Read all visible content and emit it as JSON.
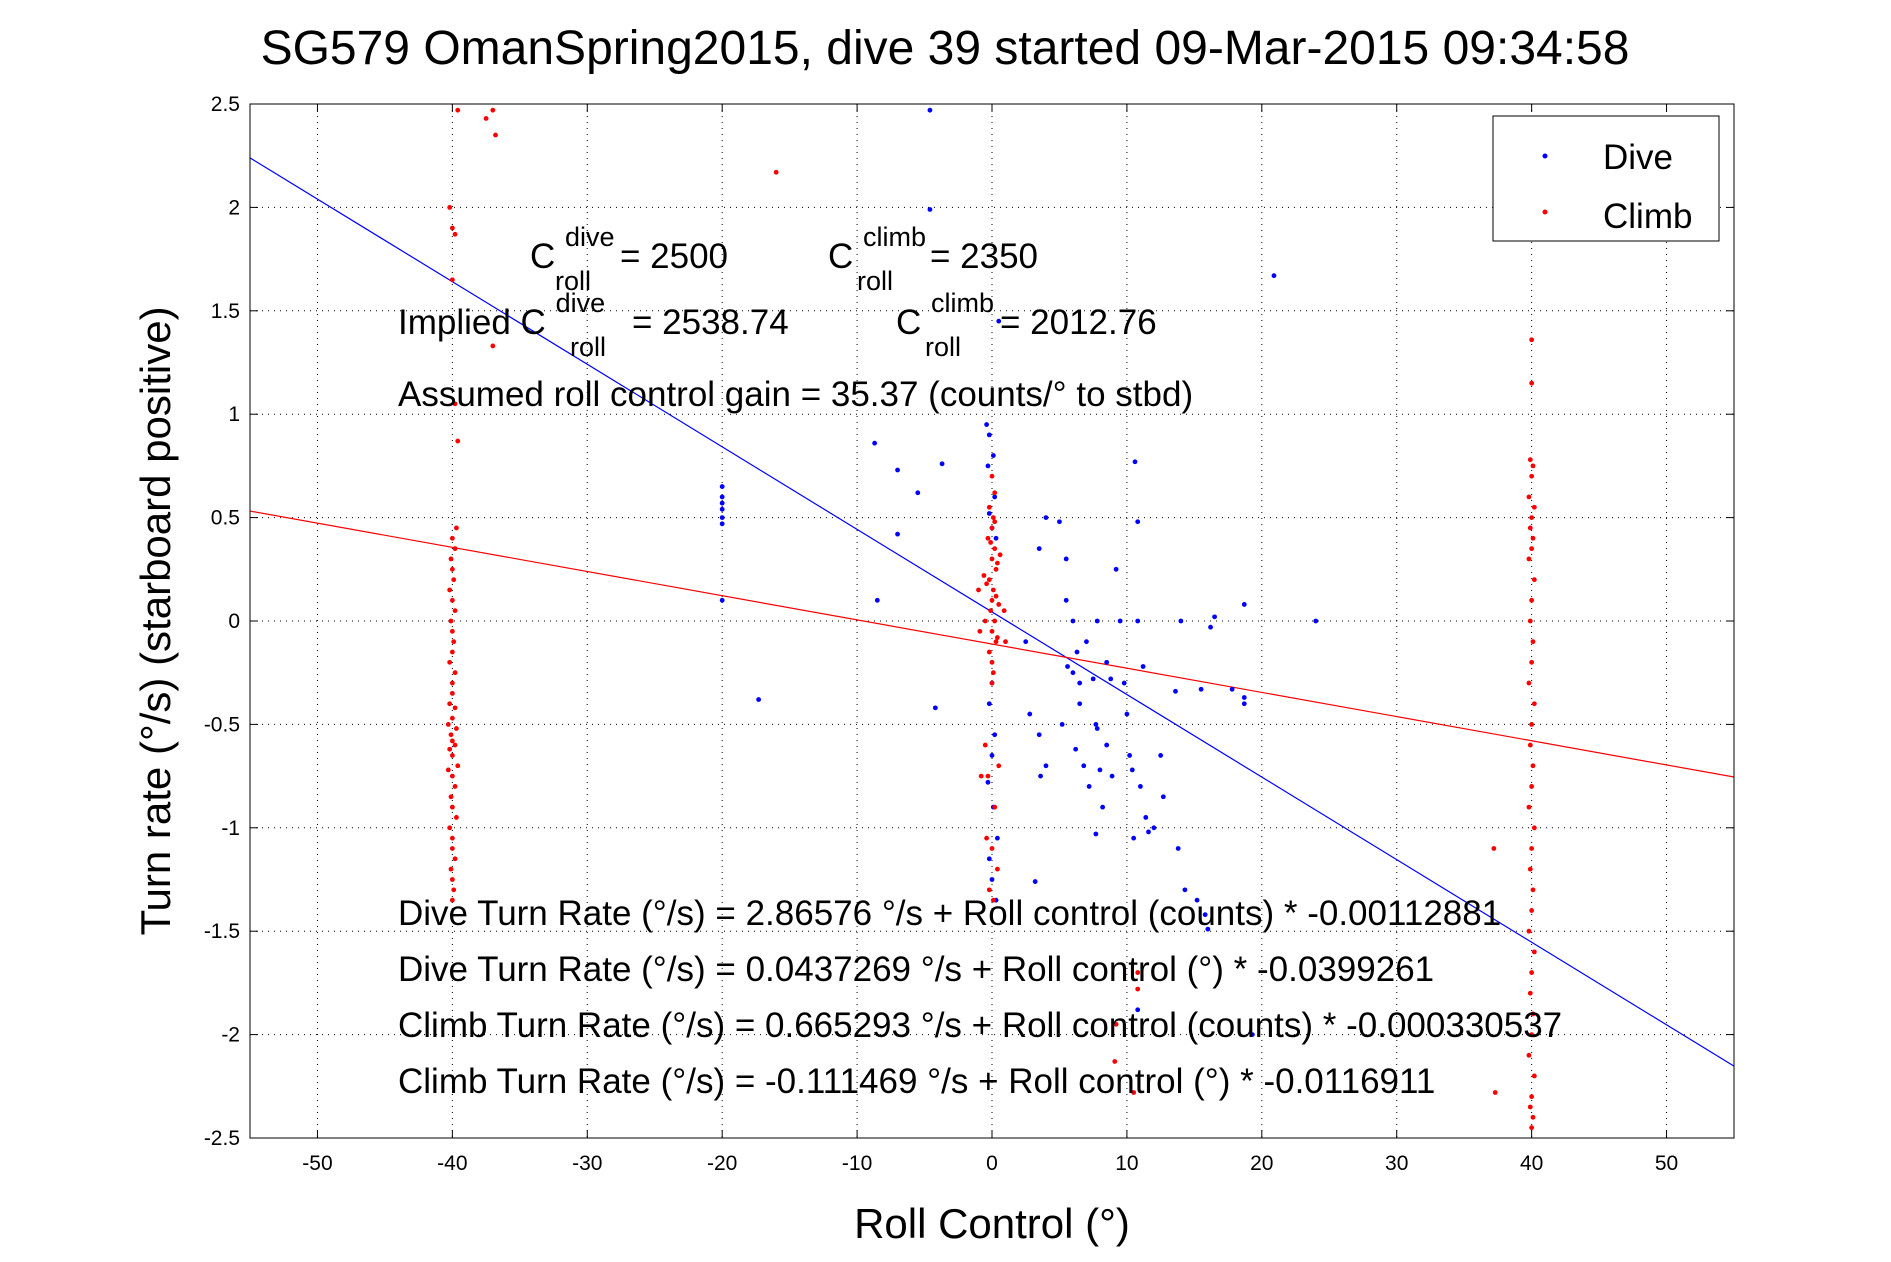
{
  "chart_data": {
    "type": "scatter",
    "title": "SG579 OmanSpring2015, dive 39 started 09-Mar-2015 09:34:58",
    "xlabel": "Roll Control (°)",
    "ylabel": "Turn rate (°/s)  (starboard positive)",
    "xlim": [
      -55,
      55
    ],
    "ylim": [
      -2.5,
      2.5
    ],
    "xticks": [
      -50,
      -40,
      -30,
      -20,
      -10,
      0,
      10,
      20,
      30,
      40,
      50
    ],
    "yticks": [
      -2.5,
      -2,
      -1.5,
      -1,
      -0.5,
      0,
      0.5,
      1,
      1.5,
      2,
      2.5
    ],
    "grid": true,
    "legend_position": "top-right",
    "series": [
      {
        "name": "Dive",
        "color": "#0000ff",
        "marker": "dot",
        "points": [
          [
            -20,
            0.65
          ],
          [
            -20,
            0.6
          ],
          [
            -20,
            0.57
          ],
          [
            -20,
            0.54
          ],
          [
            -20,
            0.5
          ],
          [
            -20,
            0.47
          ],
          [
            -20,
            0.1
          ],
          [
            -17.3,
            -0.38
          ],
          [
            -4.6,
            2.47
          ],
          [
            -4.6,
            1.99
          ],
          [
            -4.2,
            -0.42
          ],
          [
            -8.5,
            0.1
          ],
          [
            -8.7,
            0.86
          ],
          [
            -7,
            0.73
          ],
          [
            -5.5,
            0.62
          ],
          [
            -3.7,
            0.76
          ],
          [
            -7,
            0.42
          ],
          [
            -0.4,
            0.95
          ],
          [
            -0.2,
            0.9
          ],
          [
            0.1,
            0.8
          ],
          [
            -0.3,
            0.75
          ],
          [
            0.2,
            0.6
          ],
          [
            -0.2,
            0.52
          ],
          [
            0,
            0.45
          ],
          [
            0.3,
            0.4
          ],
          [
            0,
            -0.3
          ],
          [
            -0.2,
            -0.4
          ],
          [
            0.2,
            -0.55
          ],
          [
            0,
            -0.65
          ],
          [
            -0.3,
            -0.78
          ],
          [
            0.1,
            -0.9
          ],
          [
            0.4,
            -1.05
          ],
          [
            -0.2,
            -1.15
          ],
          [
            0,
            -1.25
          ],
          [
            0.3,
            -1.35
          ],
          [
            0.5,
            1.45
          ],
          [
            4,
            0.5
          ],
          [
            5,
            0.48
          ],
          [
            3.5,
            0.35
          ],
          [
            2.5,
            -0.1
          ],
          [
            2.8,
            -0.45
          ],
          [
            3.5,
            -0.55
          ],
          [
            3.6,
            -0.75
          ],
          [
            4,
            -0.7
          ],
          [
            3.2,
            -1.26
          ],
          [
            5.5,
            0.3
          ],
          [
            5.6,
            -0.22
          ],
          [
            6,
            -0.25
          ],
          [
            6.5,
            -0.3
          ],
          [
            5.2,
            -0.5
          ],
          [
            6.2,
            -0.62
          ],
          [
            6.8,
            -0.7
          ],
          [
            7.2,
            -0.8
          ],
          [
            6.5,
            -0.4
          ],
          [
            7.5,
            -0.28
          ],
          [
            7.7,
            -0.5
          ],
          [
            5.5,
            0.1
          ],
          [
            6,
            0.0
          ],
          [
            6.3,
            -0.15
          ],
          [
            7,
            -0.1
          ],
          [
            7.8,
            0.0
          ],
          [
            8.5,
            -0.2
          ],
          [
            8.8,
            -0.28
          ],
          [
            8.9,
            -0.75
          ],
          [
            9.2,
            0.25
          ],
          [
            9.5,
            0.0
          ],
          [
            9.8,
            -0.3
          ],
          [
            10,
            -0.45
          ],
          [
            10.2,
            -0.65
          ],
          [
            10.4,
            -0.72
          ],
          [
            10.8,
            0.48
          ],
          [
            10.8,
            0.0
          ],
          [
            11.2,
            -0.22
          ],
          [
            11,
            -0.8
          ],
          [
            11.4,
            -0.95
          ],
          [
            11.6,
            -1.02
          ],
          [
            12,
            -1.0
          ],
          [
            12.5,
            -0.65
          ],
          [
            12.7,
            -0.85
          ],
          [
            10.6,
            0.77
          ],
          [
            10.5,
            -1.05
          ],
          [
            7.8,
            -0.52
          ],
          [
            8,
            -0.72
          ],
          [
            7.7,
            -1.03
          ],
          [
            8.2,
            -0.9
          ],
          [
            8.5,
            -0.6
          ],
          [
            13.8,
            -1.1
          ],
          [
            14.3,
            -1.3
          ],
          [
            15.2,
            -1.35
          ],
          [
            15.8,
            -1.42
          ],
          [
            16,
            -1.49
          ],
          [
            13.6,
            -0.34
          ],
          [
            16.2,
            -0.03
          ],
          [
            15.5,
            -0.33
          ],
          [
            17.8,
            -0.33
          ],
          [
            18.7,
            -0.37
          ],
          [
            18.7,
            -0.4
          ],
          [
            18.7,
            0.08
          ],
          [
            20.9,
            1.67
          ],
          [
            24,
            0.0
          ],
          [
            14,
            0.0
          ],
          [
            16.5,
            0.02
          ],
          [
            19.3,
            -2.0
          ],
          [
            10.8,
            -1.88
          ]
        ]
      },
      {
        "name": "Climb",
        "color": "#ff0000",
        "marker": "dot",
        "points": [
          [
            -40,
            -0.35
          ],
          [
            -40.2,
            -0.4
          ],
          [
            -39.8,
            -0.42
          ],
          [
            -40,
            -0.47
          ],
          [
            -40.3,
            -0.5
          ],
          [
            -39.7,
            -0.52
          ],
          [
            -40.1,
            -0.55
          ],
          [
            -40,
            -0.58
          ],
          [
            -39.8,
            -0.6
          ],
          [
            -40.2,
            -0.62
          ],
          [
            -40,
            -0.65
          ],
          [
            -39.6,
            -0.7
          ],
          [
            -40.3,
            -0.72
          ],
          [
            -40,
            -0.75
          ],
          [
            -39.8,
            -0.8
          ],
          [
            -40.1,
            -0.85
          ],
          [
            -40,
            -0.9
          ],
          [
            -39.7,
            -0.95
          ],
          [
            -40.2,
            -1.0
          ],
          [
            -40,
            -1.05
          ],
          [
            -40,
            -1.1
          ],
          [
            -39.8,
            -1.15
          ],
          [
            -40.1,
            -1.2
          ],
          [
            -40,
            -1.25
          ],
          [
            -39.9,
            -1.3
          ],
          [
            -40,
            -1.35
          ],
          [
            -40,
            -0.3
          ],
          [
            -39.8,
            -0.25
          ],
          [
            -40.2,
            -0.2
          ],
          [
            -40,
            -0.15
          ],
          [
            -39.9,
            -0.1
          ],
          [
            -40,
            -0.05
          ],
          [
            -40.1,
            0.0
          ],
          [
            -39.8,
            0.05
          ],
          [
            -40,
            0.1
          ],
          [
            -40.2,
            0.15
          ],
          [
            -39.9,
            0.2
          ],
          [
            -40,
            0.25
          ],
          [
            -40.1,
            0.3
          ],
          [
            -39.8,
            0.35
          ],
          [
            -40,
            0.4
          ],
          [
            -39.7,
            0.45
          ],
          [
            -39.6,
            0.87
          ],
          [
            -39.8,
            1.05
          ],
          [
            -40,
            1.65
          ],
          [
            -39.8,
            1.87
          ],
          [
            -40,
            1.9
          ],
          [
            -40.2,
            2.0
          ],
          [
            -39.6,
            2.47
          ],
          [
            -37,
            1.33
          ],
          [
            -37,
            2.47
          ],
          [
            -37.5,
            2.43
          ],
          [
            -36.8,
            2.35
          ],
          [
            -16,
            2.17
          ],
          [
            0,
            0.7
          ],
          [
            0.2,
            0.62
          ],
          [
            -0.2,
            0.55
          ],
          [
            0.1,
            0.5
          ],
          [
            0,
            0.45
          ],
          [
            -0.3,
            0.4
          ],
          [
            0.2,
            0.35
          ],
          [
            0,
            0.3
          ],
          [
            0.3,
            0.25
          ],
          [
            -0.2,
            0.2
          ],
          [
            0.1,
            0.15
          ],
          [
            0,
            0.1
          ],
          [
            -0.1,
            0.05
          ],
          [
            0.2,
            0.0
          ],
          [
            0,
            -0.05
          ],
          [
            0.3,
            -0.1
          ],
          [
            -0.2,
            -0.15
          ],
          [
            0,
            -0.2
          ],
          [
            0.1,
            -0.25
          ],
          [
            0,
            -0.3
          ],
          [
            0.4,
            0.28
          ],
          [
            -0.4,
            0.18
          ],
          [
            0.5,
            0.08
          ],
          [
            -0.5,
            0.0
          ],
          [
            0.4,
            -0.08
          ],
          [
            0.6,
            0.32
          ],
          [
            -0.6,
            0.22
          ],
          [
            0.2,
            0.48
          ],
          [
            -0.1,
            0.38
          ],
          [
            0.3,
            0.12
          ],
          [
            -0.5,
            -0.6
          ],
          [
            -0.3,
            -0.75
          ],
          [
            0.2,
            -0.9
          ],
          [
            -0.4,
            -1.05
          ],
          [
            0,
            -1.1
          ],
          [
            0.4,
            -1.2
          ],
          [
            -0.2,
            -1.3
          ],
          [
            0.1,
            -1.35
          ],
          [
            0.5,
            -0.7
          ],
          [
            -0.8,
            -0.75
          ],
          [
            -1,
            0.15
          ],
          [
            -0.9,
            -0.05
          ],
          [
            0.9,
            0.05
          ],
          [
            1,
            -0.1
          ],
          [
            40,
            1.36
          ],
          [
            40,
            1.15
          ],
          [
            39.9,
            0.78
          ],
          [
            40.1,
            0.75
          ],
          [
            40,
            0.7
          ],
          [
            39.8,
            0.6
          ],
          [
            40.2,
            0.55
          ],
          [
            40,
            0.5
          ],
          [
            39.9,
            0.45
          ],
          [
            40.1,
            0.4
          ],
          [
            40,
            0.35
          ],
          [
            39.8,
            0.3
          ],
          [
            40.2,
            0.2
          ],
          [
            40,
            0.1
          ],
          [
            39.9,
            0.0
          ],
          [
            40.1,
            -0.1
          ],
          [
            40,
            -0.2
          ],
          [
            39.8,
            -0.3
          ],
          [
            40.2,
            -0.4
          ],
          [
            40,
            -0.5
          ],
          [
            39.9,
            -0.6
          ],
          [
            40.1,
            -0.7
          ],
          [
            40,
            -0.8
          ],
          [
            39.8,
            -0.9
          ],
          [
            40.2,
            -1.0
          ],
          [
            40,
            -1.1
          ],
          [
            39.9,
            -1.2
          ],
          [
            40.1,
            -1.3
          ],
          [
            40,
            -1.4
          ],
          [
            39.8,
            -1.5
          ],
          [
            40.2,
            -1.6
          ],
          [
            40,
            -1.7
          ],
          [
            39.9,
            -1.8
          ],
          [
            40.1,
            -1.9
          ],
          [
            40,
            -2.0
          ],
          [
            39.8,
            -2.1
          ],
          [
            40.2,
            -2.2
          ],
          [
            40,
            -2.3
          ],
          [
            39.9,
            -2.35
          ],
          [
            40.1,
            -2.4
          ],
          [
            40,
            -2.45
          ],
          [
            37.2,
            -1.1
          ],
          [
            37.3,
            -2.28
          ],
          [
            10.8,
            -1.7
          ],
          [
            10.8,
            -1.78
          ],
          [
            9.2,
            -1.95
          ],
          [
            9.1,
            -2.13
          ],
          [
            10.5,
            -2.28
          ]
        ]
      }
    ],
    "fit_lines": [
      {
        "name": "Dive fit",
        "color": "#0000ff",
        "intercept": 0.0437269,
        "slope": -0.0399261
      },
      {
        "name": "Climb fit",
        "color": "#ff0000",
        "intercept": -0.111469,
        "slope": -0.0116911
      }
    ]
  },
  "annotations": {
    "c_dive_base": "C",
    "c_dive_sup": "dive",
    "c_dive_sub": "roll",
    "c_dive_value": " = 2500",
    "c_climb_base": "C",
    "c_climb_sup": "climb",
    "c_climb_sub": "roll",
    "c_climb_value": " = 2350",
    "implied_prefix": "Implied C",
    "implied_dive_sup": "dive",
    "implied_dive_sub": "roll",
    "implied_dive_value": " = 2538.74",
    "implied_climb_base": "C",
    "implied_climb_sup": "climb",
    "implied_climb_sub": "roll",
    "implied_climb_value": " = 2012.76",
    "gain_line": "Assumed roll control gain = 35.37 (counts/° to stbd)",
    "eq_lines": [
      "Dive Turn Rate (°/s) = 2.86576 °/s + Roll control (counts) * -0.00112881",
      "Dive Turn Rate (°/s) = 0.0437269 °/s + Roll control (°) * -0.0399261",
      "Climb Turn Rate (°/s) = 0.665293 °/s + Roll control (counts) * -0.000330537",
      "Climb Turn Rate (°/s) = -0.111469 °/s + Roll control (°) * -0.0116911"
    ]
  }
}
